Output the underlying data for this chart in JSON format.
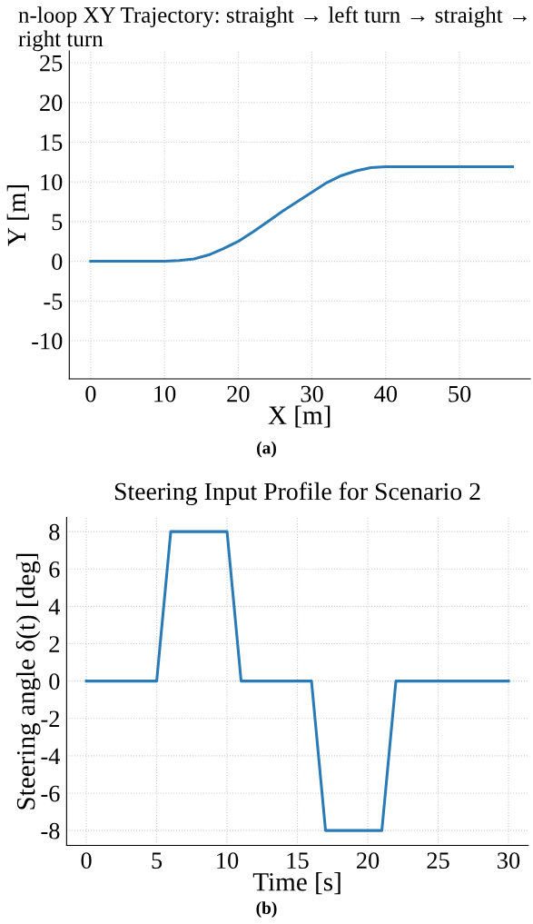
{
  "chart_data": [
    {
      "type": "line",
      "title": "n-loop XY Trajectory: straight → left turn → straight → right turn",
      "xlabel": "X [m]",
      "ylabel": "Y [m]",
      "x": [
        0,
        10,
        12,
        14,
        16,
        18,
        20,
        22,
        24,
        26,
        28,
        30,
        32,
        34,
        36,
        38,
        40,
        57.2
      ],
      "series": [
        {
          "color": "#2a7ab5",
          "values": [
            0,
            0,
            0.1,
            0.3,
            0.8,
            1.6,
            2.5,
            3.7,
            5.0,
            6.3,
            7.5,
            8.7,
            9.9,
            10.8,
            11.4,
            11.8,
            11.9,
            11.9
          ]
        }
      ],
      "xlim": [
        -2.9,
        59.6
      ],
      "ylim": [
        -14.8,
        26.5
      ],
      "xticks": [
        0,
        10,
        20,
        30,
        40,
        50
      ],
      "yticks": [
        -10,
        -5,
        0,
        5,
        10,
        15,
        20,
        25
      ],
      "grid": true,
      "annotations": [
        "(a)"
      ]
    },
    {
      "type": "line",
      "title": "Steering Input Profile for Scenario 2",
      "xlabel": "Time [s]",
      "ylabel": "Steering angle δ(t) [deg]",
      "x": [
        0,
        5,
        6,
        10,
        11,
        16,
        17,
        21,
        22,
        30
      ],
      "series": [
        {
          "color": "#2a7ab5",
          "values": [
            0,
            0,
            8,
            8,
            0,
            0,
            -8,
            -8,
            0,
            0
          ]
        }
      ],
      "xlim": [
        -1.4,
        31.4
      ],
      "ylim": [
        -8.8,
        8.76
      ],
      "xticks": [
        0,
        5,
        10,
        15,
        20,
        25,
        30
      ],
      "yticks": [
        -8,
        -6,
        -4,
        -2,
        0,
        2,
        4,
        6,
        8
      ],
      "grid": true,
      "annotations": [
        "(b)"
      ]
    }
  ]
}
